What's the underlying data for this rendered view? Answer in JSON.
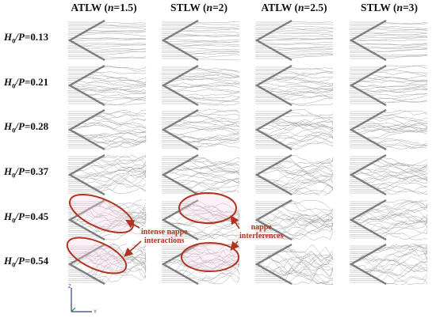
{
  "columns": [
    {
      "name": "ATLW",
      "n": "n",
      "eq": "=1.5"
    },
    {
      "name": "STLW",
      "n": "n",
      "eq": "=2"
    },
    {
      "name": "ATLW",
      "n": "n",
      "eq": "=2.5"
    },
    {
      "name": "STLW",
      "n": "n",
      "eq": "=3"
    }
  ],
  "rows": [
    {
      "h": "H",
      "sub": "0",
      "p": "/P",
      "val": "=0.13"
    },
    {
      "h": "H",
      "sub": "0",
      "p": "/P",
      "val": "=0.21"
    },
    {
      "h": "H",
      "sub": "0",
      "p": "/P",
      "val": "=0.28"
    },
    {
      "h": "H",
      "sub": "0",
      "p": "/P",
      "val": "=0.37"
    },
    {
      "h": "H",
      "sub": "0",
      "p": "/P",
      "val": "=0.45"
    },
    {
      "h": "H",
      "sub": "0",
      "p": "/P",
      "val": "=0.54"
    }
  ],
  "annotations": {
    "intense": [
      "intense nappe",
      "interactions"
    ],
    "interference": [
      "nappe",
      "interferences"
    ]
  },
  "axes": {
    "z": "Z",
    "y": "Y"
  },
  "colors": {
    "wall": "#7d7d7d",
    "stream": "#a9a9a9",
    "annot": "#b0341f",
    "highlight": "#f7d6e6"
  }
}
